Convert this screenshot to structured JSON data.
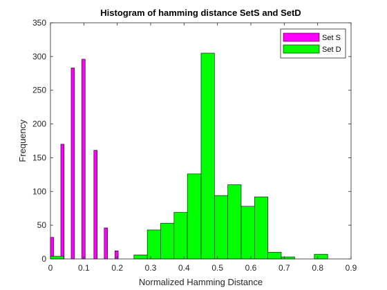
{
  "chart_data": {
    "type": "bar",
    "title": "Histogram of hamming distance SetS and SetD",
    "xlabel": "Normalized Hamming Distance",
    "ylabel": "Frequency",
    "xlim": [
      0,
      0.9
    ],
    "ylim": [
      0,
      350
    ],
    "xticks": [
      0,
      0.1,
      0.2,
      0.3,
      0.4,
      0.5,
      0.6,
      0.7,
      0.8,
      0.9
    ],
    "xtick_labels": [
      "0",
      "0.1",
      "0.2",
      "0.3",
      "0.4",
      "0.5",
      "0.6",
      "0.7",
      "0.8",
      "0.9"
    ],
    "yticks": [
      0,
      50,
      100,
      150,
      200,
      250,
      300,
      350
    ],
    "ytick_labels": [
      "0",
      "50",
      "100",
      "150",
      "200",
      "250",
      "300",
      "350"
    ],
    "grid": false,
    "legend_position": "top-right",
    "series": [
      {
        "name": "Set S",
        "color": "#ff00ff",
        "bins": [
          {
            "start": 0.0,
            "end": 0.01,
            "value": 32
          },
          {
            "start": 0.031,
            "end": 0.041,
            "value": 170
          },
          {
            "start": 0.062,
            "end": 0.072,
            "value": 283
          },
          {
            "start": 0.094,
            "end": 0.104,
            "value": 296
          },
          {
            "start": 0.13,
            "end": 0.14,
            "value": 161
          },
          {
            "start": 0.161,
            "end": 0.171,
            "value": 46
          },
          {
            "start": 0.193,
            "end": 0.203,
            "value": 12
          }
        ]
      },
      {
        "name": "Set D",
        "color": "#00ff00",
        "bins": [
          {
            "start": 0.0,
            "end": 0.04,
            "value": 4
          },
          {
            "start": 0.25,
            "end": 0.29,
            "value": 6
          },
          {
            "start": 0.29,
            "end": 0.33,
            "value": 43
          },
          {
            "start": 0.33,
            "end": 0.37,
            "value": 53
          },
          {
            "start": 0.37,
            "end": 0.41,
            "value": 69
          },
          {
            "start": 0.41,
            "end": 0.451,
            "value": 126
          },
          {
            "start": 0.451,
            "end": 0.491,
            "value": 305
          },
          {
            "start": 0.491,
            "end": 0.531,
            "value": 94
          },
          {
            "start": 0.531,
            "end": 0.571,
            "value": 110
          },
          {
            "start": 0.571,
            "end": 0.611,
            "value": 78
          },
          {
            "start": 0.611,
            "end": 0.651,
            "value": 92
          },
          {
            "start": 0.651,
            "end": 0.691,
            "value": 10
          },
          {
            "start": 0.691,
            "end": 0.731,
            "value": 3
          },
          {
            "start": 0.79,
            "end": 0.83,
            "value": 7
          }
        ]
      }
    ]
  }
}
